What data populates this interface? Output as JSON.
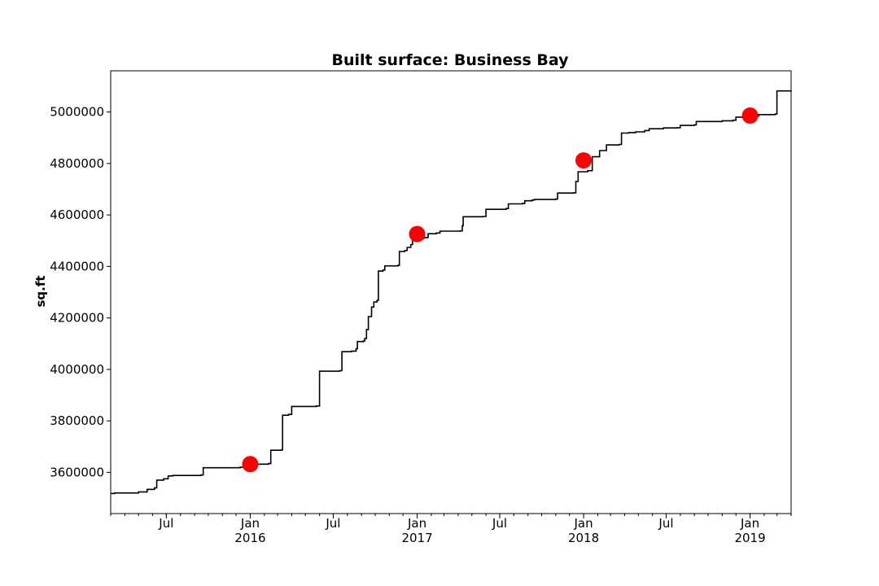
{
  "chart_data": {
    "type": "line",
    "title": "Built surface: Business Bay",
    "ylabel": "sq.ft",
    "xlabel": "",
    "xlim": [
      "2015-03-01",
      "2019-04-01"
    ],
    "ylim": [
      3440000,
      5160000
    ],
    "grid": false,
    "legend": "none",
    "y_ticks": [
      3600000,
      3800000,
      4000000,
      4200000,
      4400000,
      4600000,
      4800000,
      5000000
    ],
    "y_tick_labels": [
      "3600000",
      "3800000",
      "4000000",
      "4200000",
      "4400000",
      "4600000",
      "4800000",
      "5000000"
    ],
    "x_major_ticks": [
      {
        "date": "2015-07-01",
        "label": "Jul",
        "year": ""
      },
      {
        "date": "2016-01-01",
        "label": "Jan",
        "year": "2016"
      },
      {
        "date": "2016-07-01",
        "label": "Jul",
        "year": ""
      },
      {
        "date": "2017-01-01",
        "label": "Jan",
        "year": "2017"
      },
      {
        "date": "2017-07-01",
        "label": "Jul",
        "year": ""
      },
      {
        "date": "2018-01-01",
        "label": "Jan",
        "year": "2018"
      },
      {
        "date": "2018-07-01",
        "label": "Jul",
        "year": ""
      },
      {
        "date": "2019-01-01",
        "label": "Jan",
        "year": "2019"
      }
    ],
    "series": [
      {
        "line_color": "#000000",
        "points": [
          [
            "2015-03-01",
            3518000
          ],
          [
            "2015-03-10",
            3520000
          ],
          [
            "2015-04-20",
            3520000
          ],
          [
            "2015-05-01",
            3524000
          ],
          [
            "2015-05-20",
            3534000
          ],
          [
            "2015-06-05",
            3540000
          ],
          [
            "2015-06-10",
            3570000
          ],
          [
            "2015-06-25",
            3575000
          ],
          [
            "2015-07-05",
            3586000
          ],
          [
            "2015-07-15",
            3588000
          ],
          [
            "2015-09-15",
            3590000
          ],
          [
            "2015-09-20",
            3618000
          ],
          [
            "2015-12-10",
            3620000
          ],
          [
            "2015-12-28",
            3632000
          ],
          [
            "2016-02-10",
            3634000
          ],
          [
            "2016-02-15",
            3686000
          ],
          [
            "2016-03-10",
            3688000
          ],
          [
            "2016-03-12",
            3822000
          ],
          [
            "2016-03-25",
            3825000
          ],
          [
            "2016-04-01",
            3856000
          ],
          [
            "2016-05-25",
            3858000
          ],
          [
            "2016-06-01",
            3993000
          ],
          [
            "2016-07-15",
            3995000
          ],
          [
            "2016-07-20",
            4069000
          ],
          [
            "2016-08-10",
            4071000
          ],
          [
            "2016-08-20",
            4080000
          ],
          [
            "2016-08-23",
            4108000
          ],
          [
            "2016-09-05",
            4110000
          ],
          [
            "2016-09-08",
            4120000
          ],
          [
            "2016-09-12",
            4155000
          ],
          [
            "2016-09-16",
            4205000
          ],
          [
            "2016-09-23",
            4242000
          ],
          [
            "2016-09-28",
            4262000
          ],
          [
            "2016-10-05",
            4268000
          ],
          [
            "2016-10-08",
            4382000
          ],
          [
            "2016-10-18",
            4386000
          ],
          [
            "2016-10-22",
            4402000
          ],
          [
            "2016-11-20",
            4404000
          ],
          [
            "2016-11-23",
            4458000
          ],
          [
            "2016-12-05",
            4462000
          ],
          [
            "2016-12-10",
            4474000
          ],
          [
            "2016-12-18",
            4485000
          ],
          [
            "2016-12-22",
            4508000
          ],
          [
            "2017-01-15",
            4512000
          ],
          [
            "2017-01-25",
            4527000
          ],
          [
            "2017-02-12",
            4530000
          ],
          [
            "2017-02-20",
            4537000
          ],
          [
            "2017-04-05",
            4538000
          ],
          [
            "2017-04-10",
            4558000
          ],
          [
            "2017-04-12",
            4593000
          ],
          [
            "2017-05-25",
            4594000
          ],
          [
            "2017-06-01",
            4622000
          ],
          [
            "2017-07-15",
            4625000
          ],
          [
            "2017-07-20",
            4643000
          ],
          [
            "2017-08-20",
            4645000
          ],
          [
            "2017-08-25",
            4655000
          ],
          [
            "2017-09-10",
            4658000
          ],
          [
            "2017-09-15",
            4660000
          ],
          [
            "2017-11-01",
            4662000
          ],
          [
            "2017-11-05",
            4685000
          ],
          [
            "2017-12-10",
            4686000
          ],
          [
            "2017-12-15",
            4730000
          ],
          [
            "2017-12-20",
            4768000
          ],
          [
            "2018-01-10",
            4772000
          ],
          [
            "2018-01-20",
            4826000
          ],
          [
            "2018-02-05",
            4850000
          ],
          [
            "2018-02-20",
            4872000
          ],
          [
            "2018-03-20",
            4874000
          ],
          [
            "2018-03-25",
            4918000
          ],
          [
            "2018-04-10",
            4920000
          ],
          [
            "2018-04-25",
            4923000
          ],
          [
            "2018-05-15",
            4928000
          ],
          [
            "2018-05-25",
            4935000
          ],
          [
            "2018-06-25",
            4938000
          ],
          [
            "2018-07-25",
            4939000
          ],
          [
            "2018-08-01",
            4948000
          ],
          [
            "2018-09-01",
            4950000
          ],
          [
            "2018-09-05",
            4963000
          ],
          [
            "2018-11-01",
            4966000
          ],
          [
            "2018-11-25",
            4968000
          ],
          [
            "2018-12-01",
            4980000
          ],
          [
            "2019-01-10",
            4984000
          ],
          [
            "2019-01-20",
            4990000
          ],
          [
            "2019-02-25",
            4992000
          ],
          [
            "2019-03-01",
            5082000
          ],
          [
            "2019-04-01",
            5084000
          ]
        ]
      }
    ],
    "markers": {
      "color": "#ff0000",
      "points": [
        [
          "2016-01-01",
          3632000
        ],
        [
          "2017-01-01",
          4526000
        ],
        [
          "2018-01-01",
          4812000
        ],
        [
          "2019-01-01",
          4986000
        ]
      ]
    }
  }
}
